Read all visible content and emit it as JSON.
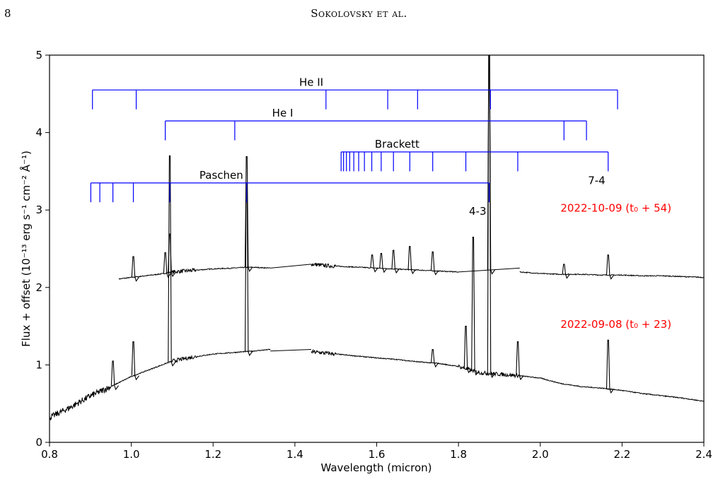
{
  "header": {
    "page_number": "8",
    "running_head": "Sokolovsky et al."
  },
  "chart_data": {
    "type": "line",
    "xlabel": "Wavelength (micron)",
    "ylabel": "Flux + offset  (10⁻¹³ erg s⁻¹ cm⁻² Å⁻¹)",
    "xlim": [
      0.8,
      2.4
    ],
    "ylim": [
      0,
      5
    ],
    "xticks": [
      "0.8",
      "1.0",
      "1.2",
      "1.4",
      "1.6",
      "1.8",
      "2.0",
      "2.2",
      "2.4"
    ],
    "yticks": [
      "0",
      "1",
      "2",
      "3",
      "4",
      "5"
    ],
    "grid": false,
    "colors": {
      "spectrum": "#000000",
      "line_ids": "#0000ff",
      "epoch_labels": "#ff0000"
    },
    "series": [
      {
        "name": "2022-10-09  (t₀ + 54)",
        "label": "2022-10-09  (t₀ + 54)",
        "segments": [
          {
            "x": [
              0.97,
              1.0,
              1.05,
              1.08,
              1.1,
              1.15,
              1.2,
              1.25,
              1.28,
              1.3,
              1.34
            ],
            "y": [
              2.11,
              2.13,
              2.16,
              2.18,
              2.2,
              2.22,
              2.24,
              2.25,
              2.26,
              2.26,
              2.25
            ]
          },
          {
            "x": [
              1.34,
              1.44
            ],
            "y": [
              2.25,
              2.3
            ]
          },
          {
            "x": [
              1.44,
              1.48,
              1.52,
              1.56,
              1.6,
              1.64,
              1.68,
              1.72,
              1.76,
              1.8
            ],
            "y": [
              2.3,
              2.28,
              2.27,
              2.26,
              2.25,
              2.24,
              2.23,
              2.22,
              2.21,
              2.2
            ]
          },
          {
            "x": [
              1.8,
              1.95
            ],
            "y": [
              2.2,
              2.25
            ]
          },
          {
            "x": [
              1.95,
              2.0,
              2.05,
              2.1,
              2.15,
              2.2,
              2.25,
              2.3,
              2.35,
              2.4
            ],
            "y": [
              2.2,
              2.18,
              2.17,
              2.17,
              2.16,
              2.16,
              2.15,
              2.15,
              2.14,
              2.13
            ]
          }
        ],
        "emission_lines": [
          {
            "x": 1.005,
            "peak": 2.4
          },
          {
            "x": 1.083,
            "peak": 2.45
          },
          {
            "x": 1.094,
            "peak": 2.69
          },
          {
            "x": 1.282,
            "peak": 3.69
          },
          {
            "x": 1.589,
            "peak": 2.42
          },
          {
            "x": 1.611,
            "peak": 2.44
          },
          {
            "x": 1.641,
            "peak": 2.48
          },
          {
            "x": 1.681,
            "peak": 2.53
          },
          {
            "x": 1.737,
            "peak": 2.46
          },
          {
            "x": 1.875,
            "peak": 5.0
          },
          {
            "x": 2.058,
            "peak": 2.3
          },
          {
            "x": 2.166,
            "peak": 2.42
          }
        ]
      },
      {
        "name": "2022-09-08  (t₀ + 23)",
        "label": "2022-09-08  (t₀ + 23)",
        "segments": [
          {
            "x": [
              0.8,
              0.85,
              0.9,
              0.95,
              1.0,
              1.05,
              1.1,
              1.15,
              1.2,
              1.25,
              1.3,
              1.34
            ],
            "y": [
              0.32,
              0.45,
              0.6,
              0.72,
              0.85,
              0.95,
              1.05,
              1.1,
              1.14,
              1.16,
              1.18,
              1.2
            ]
          },
          {
            "x": [
              1.34,
              1.44
            ],
            "y": [
              1.18,
              1.2
            ]
          },
          {
            "x": [
              1.44,
              1.48,
              1.52,
              1.56,
              1.6,
              1.65,
              1.7,
              1.75,
              1.8,
              1.85,
              1.9,
              1.95,
              2.0,
              2.05,
              2.1,
              2.15,
              2.2,
              2.25,
              2.3,
              2.35,
              2.4
            ],
            "y": [
              1.17,
              1.15,
              1.13,
              1.11,
              1.09,
              1.07,
              1.04,
              1.02,
              0.98,
              0.9,
              0.88,
              0.86,
              0.83,
              0.76,
              0.72,
              0.7,
              0.67,
              0.63,
              0.6,
              0.57,
              0.53
            ]
          }
        ],
        "emission_lines": [
          {
            "x": 0.955,
            "peak": 1.05
          },
          {
            "x": 1.005,
            "peak": 1.3
          },
          {
            "x": 1.094,
            "peak": 3.7
          },
          {
            "x": 1.282,
            "peak": 3.35
          },
          {
            "x": 1.737,
            "peak": 1.2
          },
          {
            "x": 1.818,
            "peak": 1.5
          },
          {
            "x": 1.836,
            "peak": 2.65
          },
          {
            "x": 1.875,
            "peak": 5.0
          },
          {
            "x": 1.945,
            "peak": 1.3
          },
          {
            "x": 2.166,
            "peak": 1.32
          }
        ]
      }
    ],
    "line_ids": [
      {
        "name": "He II",
        "y": 4.55,
        "tick_bottom": 4.3,
        "label_x": 1.44,
        "x": [
          0.905,
          1.012,
          1.476,
          1.627,
          1.7,
          1.878,
          2.189
        ]
      },
      {
        "name": "He I",
        "y": 4.15,
        "tick_bottom": 3.9,
        "label_x": 1.37,
        "x": [
          1.083,
          1.253,
          2.058,
          2.113
        ]
      },
      {
        "name": "Brackett",
        "y": 3.75,
        "tick_bottom": 3.5,
        "label_x": 1.65,
        "x": [
          1.513,
          1.519,
          1.526,
          1.534,
          1.544,
          1.556,
          1.57,
          1.588,
          1.611,
          1.641,
          1.681,
          1.737,
          1.818,
          1.945,
          2.166
        ],
        "end_label": "7-4"
      },
      {
        "name": "Paschen",
        "y": 3.35,
        "tick_bottom": 3.1,
        "label_x": 1.22,
        "x": [
          0.901,
          0.923,
          0.955,
          1.005,
          1.094,
          1.282,
          1.875
        ],
        "end_label": "4-3"
      }
    ],
    "annotations": [
      {
        "text": "2022-10-09  (t₀ + 54)",
        "x": 2.185,
        "y": 2.98,
        "color": "#ff0000"
      },
      {
        "text": "2022-09-08  (t₀ + 23)",
        "x": 2.185,
        "y": 1.48,
        "color": "#ff0000"
      }
    ]
  }
}
